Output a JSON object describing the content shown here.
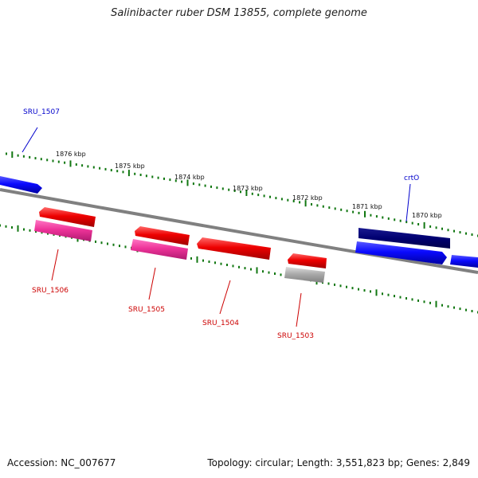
{
  "title": "Salinibacter ruber DSM 13855, complete genome",
  "footer": {
    "accession": "Accession: NC_007677",
    "summary": "Topology: circular; Length: 3,551,823 bp; Genes: 2,849"
  },
  "scale_labels": [
    "1876 kbp",
    "1875 kbp",
    "1874 kbp",
    "1873 kbp",
    "1872 kbp",
    "1871 kbp",
    "1870 kbp"
  ],
  "genes": [
    {
      "id": "g1507",
      "label": "SRU_1507",
      "color": "#0000cc"
    },
    {
      "id": "g1506",
      "label": "SRU_1506",
      "color": "#cc0000"
    },
    {
      "id": "g1505",
      "label": "SRU_1505",
      "color": "#cc0000"
    },
    {
      "id": "g1504",
      "label": "SRU_1504",
      "color": "#cc0000"
    },
    {
      "id": "g1503",
      "label": "SRU_1503",
      "color": "#cc0000"
    },
    {
      "id": "gcrtO",
      "label": "crtO",
      "color": "#0000cc"
    }
  ],
  "colors": {
    "backbone": "#808080",
    "ticks": "#117711",
    "forward_cds": "#0a0aff",
    "forward_cds_dark": "#000080",
    "reverse_cds": "#ee0000",
    "reverse_cds_pink": "#ee3399",
    "pseudo_gray": "#aaaaaa"
  }
}
